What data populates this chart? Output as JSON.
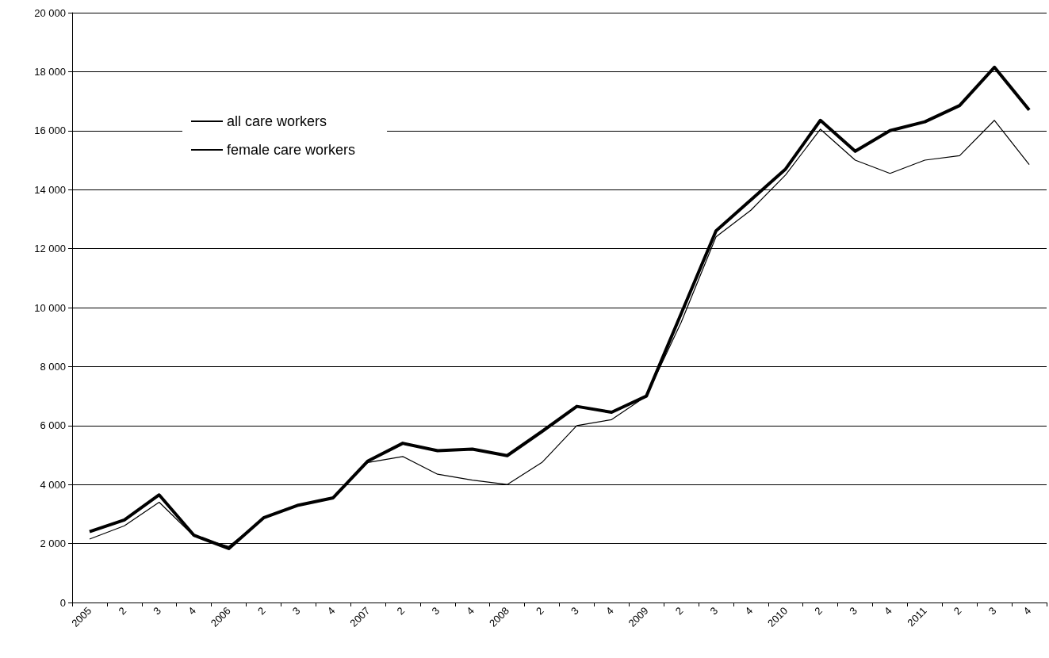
{
  "chart_data": {
    "type": "line",
    "categories": [
      "2005",
      "2",
      "3",
      "4",
      "2006",
      "2",
      "3",
      "4",
      "2007",
      "2",
      "3",
      "4",
      "2008",
      "2",
      "3",
      "4",
      "2009",
      "2",
      "3",
      "4",
      "2010",
      "2",
      "3",
      "4",
      "2011",
      "2",
      "3",
      "4"
    ],
    "series": [
      {
        "name": "all care workers",
        "color": "#000000",
        "values": [
          2400,
          2800,
          3650,
          2280,
          1830,
          2870,
          3300,
          3550,
          4800,
          5400,
          5150,
          5200,
          4980,
          5800,
          6650,
          6450,
          7000,
          9800,
          12600,
          13650,
          14700,
          16350,
          15300,
          16000,
          16300,
          16850,
          18150,
          16700
        ]
      },
      {
        "name": "female care workers",
        "color": "#000000",
        "values": [
          2150,
          2600,
          3400,
          2250,
          1900,
          2850,
          3300,
          3550,
          4750,
          4950,
          4350,
          4150,
          4000,
          4750,
          6000,
          6200,
          7000,
          9500,
          12400,
          13300,
          14500,
          16050,
          15000,
          14550,
          15000,
          15150,
          16350,
          14850
        ]
      }
    ],
    "ylim": [
      0,
      20000
    ],
    "yticks": [
      {
        "value": 0,
        "label": "0"
      },
      {
        "value": 2000,
        "label": "2 000"
      },
      {
        "value": 4000,
        "label": "4 000"
      },
      {
        "value": 6000,
        "label": "6 000"
      },
      {
        "value": 8000,
        "label": "8 000"
      },
      {
        "value": 10000,
        "label": "10 000"
      },
      {
        "value": 12000,
        "label": "12 000"
      },
      {
        "value": 14000,
        "label": "14 000"
      },
      {
        "value": 16000,
        "label": "16 000"
      },
      {
        "value": 18000,
        "label": "18 000"
      },
      {
        "value": 20000,
        "label": "20 000"
      }
    ],
    "grid": "y",
    "legend": "top left",
    "marker": "none",
    "line_style": "solid"
  }
}
